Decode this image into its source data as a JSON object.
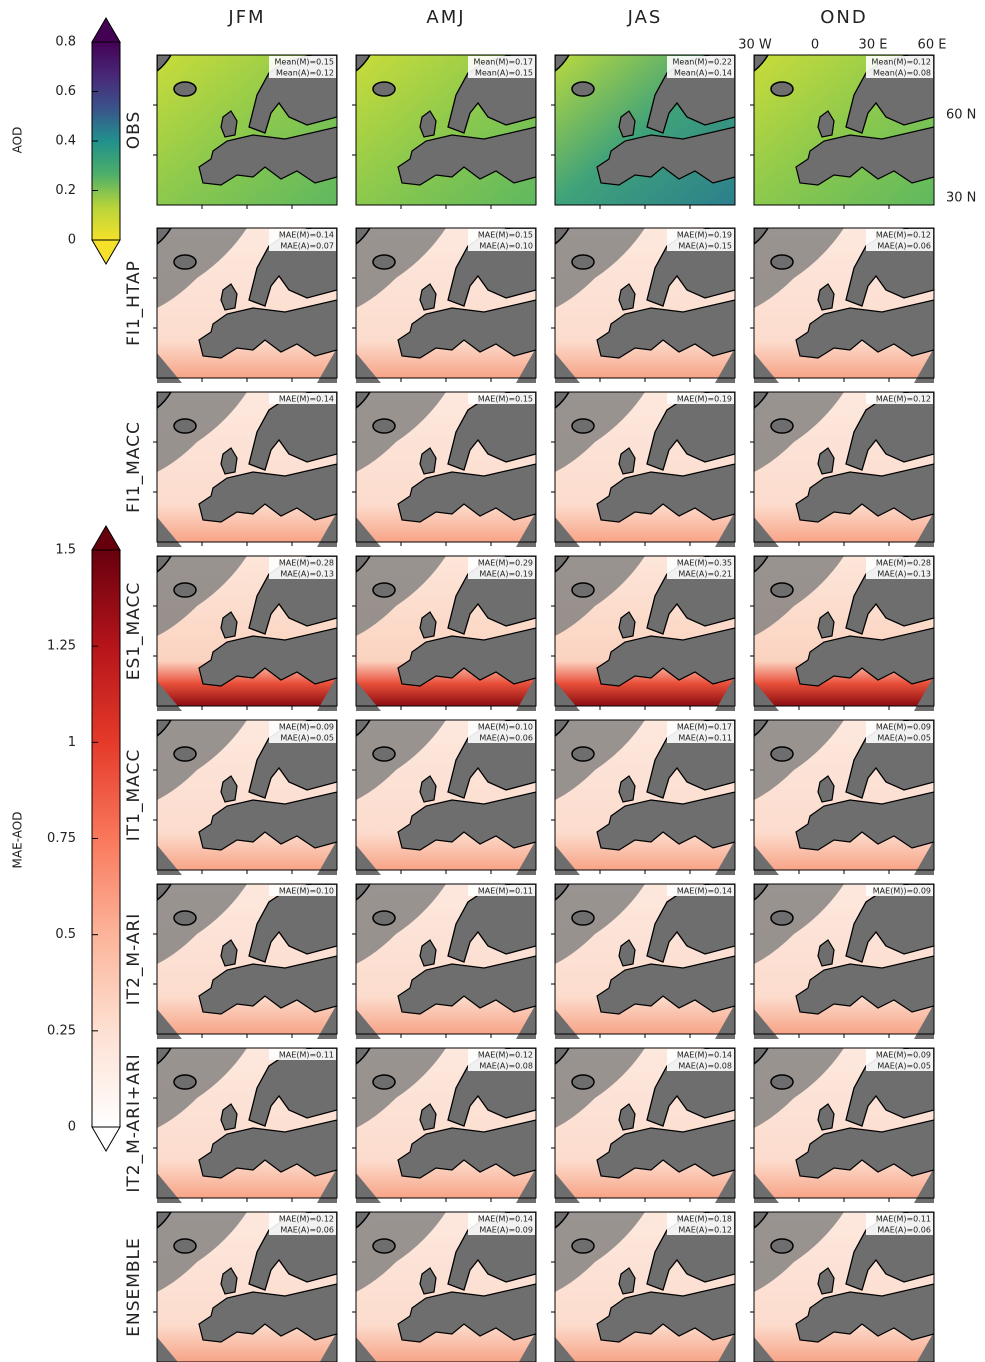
{
  "colorbars": [
    {
      "label": "AOD",
      "lim": [
        0,
        0.8
      ],
      "ticks": [
        0,
        0.2,
        0.4,
        0.6,
        0.8
      ],
      "colors": [
        "#f5e12a",
        "#b7d43a",
        "#4dae6a",
        "#21918c",
        "#3b528b",
        "#482777",
        "#440154"
      ]
    },
    {
      "label": "MAE-AOD",
      "lim": [
        0,
        1.5
      ],
      "ticks": [
        0,
        0.25,
        0.5,
        0.75,
        1,
        1.25,
        1.5
      ],
      "colors": [
        "#ffffff",
        "#fde0d2",
        "#fcb49a",
        "#f9785c",
        "#e53a2a",
        "#b5141a",
        "#67000d"
      ]
    }
  ],
  "columns": [
    "JFM",
    "AMJ",
    "JAS",
    "OND"
  ],
  "lon_labels": [
    "30 W",
    "0",
    "30 E",
    "60 E"
  ],
  "lat_labels": [
    "60 N",
    "30 N"
  ],
  "rows": [
    {
      "name": "OBS",
      "stats": [
        [
          "Mean(M)=0.15",
          "Mean(A)=0.12"
        ],
        [
          "Mean(M)=0.17",
          "Mean(A)=0.15"
        ],
        [
          "Mean(M)=0.22",
          "Mean(A)=0.14"
        ],
        [
          "Mean(M)=0.12",
          "Mean(A)=0.08"
        ]
      ]
    },
    {
      "name": "FI1_HTAP",
      "stats": [
        [
          "MAE(M)=0.14",
          "MAE(A)=0.07"
        ],
        [
          "MAE(M)=0.15",
          "MAE(A)=0.10"
        ],
        [
          "MAE(M)=0.19",
          "MAE(A)=0.15"
        ],
        [
          "MAE(M)=0.12",
          "MAE(A)=0.06"
        ]
      ]
    },
    {
      "name": "FI1_MACC",
      "stats": [
        [
          "MAE(M)=0.14"
        ],
        [
          "MAE(M)=0.15"
        ],
        [
          "MAE(M)=0.19"
        ],
        [
          "MAE(M)=0.12"
        ]
      ]
    },
    {
      "name": "ES1_MACC",
      "stats": [
        [
          "MAE(M)=0.28",
          "MAE(A)=0.13"
        ],
        [
          "MAE(M)=0.29",
          "MAE(A)=0.19"
        ],
        [
          "MAE(M)=0.35",
          "MAE(A)=0.21"
        ],
        [
          "MAE(M)=0.28",
          "MAE(A)=0.13"
        ]
      ]
    },
    {
      "name": "IT1_MACC",
      "stats": [
        [
          "MAE(M)=0.09",
          "MAE(A)=0.05"
        ],
        [
          "MAE(M)=0.10",
          "MAE(A)=0.06"
        ],
        [
          "MAE(M)=0.17",
          "MAE(A)=0.11"
        ],
        [
          "MAE(M)=0.09",
          "MAE(A)=0.05"
        ]
      ]
    },
    {
      "name": "IT2_M-ARI",
      "stats": [
        [
          "MAE(M)=0.10"
        ],
        [
          "MAE(M)=0.11"
        ],
        [
          "MAE(M)=0.14"
        ],
        [
          "MAE(M))=0.09"
        ]
      ]
    },
    {
      "name": "IT2_M-ARI+ARI",
      "stats": [
        [
          "MAE(M)=0.11"
        ],
        [
          "MAE(M)=0.12",
          "MAE(A)=0.08"
        ],
        [
          "MAE(M)=0.14",
          "MAE(A)=0.08"
        ],
        [
          "MAE(M)=0.09",
          "MAE(A)=0.05"
        ]
      ]
    },
    {
      "name": "ENSEMBLE",
      "stats": [
        [
          "MAE(M)=0.12",
          "MAE(A)=0.06"
        ],
        [
          "MAE(M)=0.14",
          "MAE(A)=0.09"
        ],
        [
          "MAE(M)=0.18",
          "MAE(A)=0.12"
        ],
        [
          "MAE(M)=0.11",
          "MAE(A)=0.06"
        ]
      ]
    }
  ]
}
